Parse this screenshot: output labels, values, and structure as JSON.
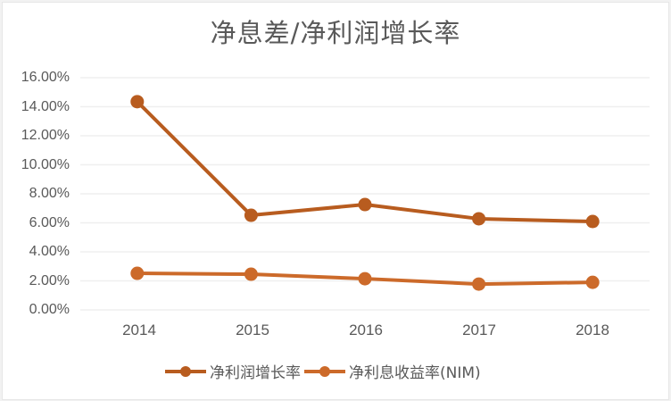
{
  "chart_data": {
    "type": "line",
    "title": "净息差/净利润增长率",
    "xlabel": "",
    "ylabel": "",
    "categories": [
      "2014",
      "2015",
      "2016",
      "2017",
      "2018"
    ],
    "series": [
      {
        "name": "净利润增长率",
        "color": "#B85C1F",
        "values": [
          14.35,
          6.52,
          7.26,
          6.28,
          6.09
        ]
      },
      {
        "name": "净利息收益率(NIM)",
        "color": "#CC6A2A",
        "values": [
          2.52,
          2.46,
          2.15,
          1.78,
          1.9
        ]
      }
    ],
    "ylim": [
      0,
      16
    ],
    "yticks": [
      "0.00%",
      "2.00%",
      "4.00%",
      "6.00%",
      "8.00%",
      "10.00%",
      "12.00%",
      "14.00%",
      "16.00%"
    ],
    "grid": true,
    "legend_position": "bottom",
    "gridline_color": "#EFEFEF"
  },
  "title": "净息差/净利润增长率",
  "axis": {
    "y": [
      "16.00%",
      "14.00%",
      "12.00%",
      "10.00%",
      "8.00%",
      "6.00%",
      "4.00%",
      "2.00%",
      "0.00%"
    ],
    "x": [
      "2014",
      "2015",
      "2016",
      "2017",
      "2018"
    ]
  },
  "legend": [
    {
      "label": "净利润增长率",
      "color": "#B85C1F"
    },
    {
      "label": "净利息收益率(NIM)",
      "color": "#CC6A2A"
    }
  ]
}
